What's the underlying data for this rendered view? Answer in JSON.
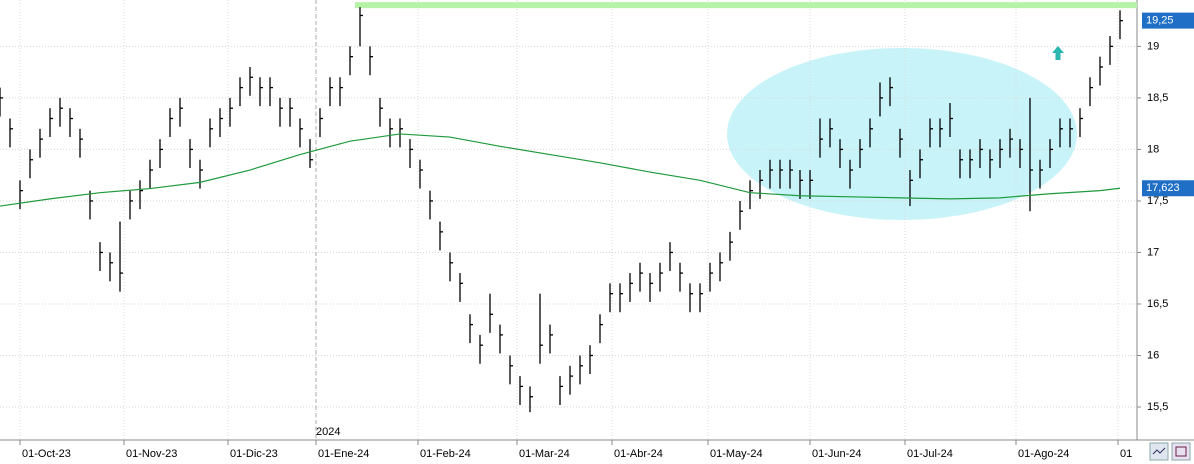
{
  "chart_data": {
    "type": "ohlc",
    "xlim": [
      0,
      113.7
    ],
    "ylim": [
      15.18,
      19.45
    ],
    "xticks": [
      {
        "value": 2,
        "label": "01-Oct-23"
      },
      {
        "value": 12.4,
        "label": "01-Nov-23"
      },
      {
        "value": 22.8,
        "label": "01-Dic-23"
      },
      {
        "value": 31.6,
        "label": "01-Ene-24"
      },
      {
        "value": 41.8,
        "label": "01-Feb-24"
      },
      {
        "value": 51.7,
        "label": "01-Mar-24"
      },
      {
        "value": 61.2,
        "label": "01-Abr-24"
      },
      {
        "value": 70.8,
        "label": "01-May-24"
      },
      {
        "value": 81,
        "label": "01-Jun-24"
      },
      {
        "value": 90.5,
        "label": "01-Jul-24"
      },
      {
        "value": 101.6,
        "label": "01-Ago-24"
      },
      {
        "value": 111.8,
        "label": "01"
      }
    ],
    "yticks": [
      {
        "value": 15.5,
        "label": "15,5"
      },
      16,
      {
        "value": 16.5,
        "label": "16,5"
      },
      17,
      {
        "value": 17.5,
        "label": "17,5"
      },
      18,
      {
        "value": 18.5,
        "label": "18,5"
      },
      19
    ],
    "grid": true,
    "year_marker": {
      "label": "2024",
      "x": 31.6
    },
    "ohlc": {
      "color": "#000000",
      "x": [
        0,
        1,
        2,
        3,
        4,
        5,
        6,
        7,
        8,
        9,
        10,
        11,
        12,
        13,
        14,
        15,
        16,
        17,
        18,
        19,
        20,
        21,
        22,
        23,
        24,
        25,
        26,
        27,
        28,
        29,
        30,
        31,
        32,
        33,
        34,
        35,
        36,
        37,
        38,
        39,
        40,
        41,
        42,
        43,
        44,
        45,
        46,
        47,
        48,
        49,
        50,
        51,
        52,
        53,
        54,
        55,
        56,
        57,
        58,
        59,
        60,
        61,
        62,
        63,
        64,
        65,
        66,
        67,
        68,
        69,
        70,
        71,
        72,
        73,
        74,
        75,
        76,
        77,
        78,
        79,
        80,
        81,
        82,
        83,
        84,
        85,
        86,
        87,
        88,
        89,
        90,
        91,
        92,
        93,
        94,
        95,
        96,
        97,
        98,
        99,
        100,
        101,
        102,
        103,
        104,
        105,
        106,
        107,
        108,
        109,
        110,
        111,
        112
      ],
      "high": [
        18.6,
        18.3,
        17.7,
        18.0,
        18.2,
        18.4,
        18.5,
        18.4,
        18.2,
        17.6,
        17.1,
        17.0,
        17.3,
        17.6,
        17.7,
        17.9,
        18.1,
        18.4,
        18.5,
        18.1,
        17.9,
        18.3,
        18.4,
        18.5,
        18.7,
        18.8,
        18.7,
        18.7,
        18.5,
        18.5,
        18.3,
        18.1,
        18.4,
        18.7,
        18.7,
        19.0,
        19.38,
        19.0,
        18.5,
        18.3,
        18.3,
        18.1,
        17.9,
        17.6,
        17.3,
        17.0,
        16.8,
        16.4,
        16.2,
        16.6,
        16.3,
        16.0,
        15.8,
        15.7,
        16.6,
        16.3,
        15.8,
        15.9,
        16.0,
        16.1,
        16.4,
        16.7,
        16.7,
        16.8,
        16.9,
        16.8,
        16.9,
        17.1,
        16.9,
        16.7,
        16.7,
        16.9,
        17.0,
        17.2,
        17.5,
        17.7,
        17.8,
        17.9,
        17.9,
        17.9,
        17.8,
        17.8,
        18.3,
        18.3,
        18.1,
        17.9,
        18.1,
        18.3,
        18.65,
        18.7,
        18.2,
        17.8,
        18.0,
        18.3,
        18.3,
        18.45,
        18.0,
        18.0,
        18.1,
        18.0,
        18.1,
        18.2,
        18.1,
        18.5,
        17.9,
        18.1,
        18.3,
        18.3,
        18.4,
        18.7,
        18.9,
        19.1,
        19.35
      ],
      "low": [
        18.32,
        18.02,
        17.42,
        17.72,
        17.92,
        18.12,
        18.22,
        18.12,
        17.92,
        17.32,
        16.82,
        16.72,
        16.62,
        17.32,
        17.42,
        17.62,
        17.82,
        18.12,
        18.22,
        17.82,
        17.62,
        18.02,
        18.12,
        18.22,
        18.42,
        18.52,
        18.42,
        18.42,
        18.22,
        18.22,
        18.02,
        17.82,
        18.12,
        18.42,
        18.42,
        18.72,
        19.0,
        18.72,
        18.22,
        18.02,
        18.02,
        17.82,
        17.62,
        17.32,
        17.02,
        16.72,
        16.52,
        16.12,
        15.92,
        16.22,
        16.02,
        15.72,
        15.52,
        15.45,
        15.92,
        16.02,
        15.52,
        15.62,
        15.72,
        15.82,
        16.12,
        16.42,
        16.42,
        16.52,
        16.62,
        16.52,
        16.62,
        16.82,
        16.62,
        16.42,
        16.42,
        16.62,
        16.72,
        16.92,
        17.22,
        17.42,
        17.52,
        17.62,
        17.62,
        17.62,
        17.52,
        17.52,
        17.92,
        18.02,
        17.82,
        17.62,
        17.82,
        18.02,
        18.32,
        18.42,
        17.92,
        17.45,
        17.72,
        18.02,
        18.02,
        18.12,
        17.72,
        17.72,
        17.82,
        17.72,
        17.82,
        17.92,
        17.82,
        17.4,
        17.62,
        17.82,
        18.02,
        18.02,
        18.12,
        18.42,
        18.62,
        18.82,
        19.07
      ],
      "close": [
        18.5,
        18.2,
        17.6,
        17.9,
        18.1,
        18.3,
        18.4,
        18.3,
        18.1,
        17.5,
        17.0,
        16.9,
        16.8,
        17.5,
        17.6,
        17.8,
        18.0,
        18.3,
        18.4,
        18.0,
        17.8,
        18.2,
        18.3,
        18.4,
        18.6,
        18.7,
        18.6,
        18.6,
        18.4,
        18.4,
        18.2,
        17.9,
        18.3,
        18.6,
        18.6,
        18.9,
        19.3,
        18.9,
        18.4,
        18.2,
        18.2,
        18.0,
        17.8,
        17.5,
        17.2,
        16.9,
        16.7,
        16.3,
        16.1,
        16.4,
        16.2,
        15.9,
        15.7,
        15.6,
        16.1,
        16.2,
        15.7,
        15.8,
        15.9,
        16.0,
        16.3,
        16.6,
        16.6,
        16.7,
        16.8,
        16.7,
        16.8,
        17.0,
        16.8,
        16.6,
        16.6,
        16.8,
        16.9,
        17.1,
        17.4,
        17.6,
        17.7,
        17.8,
        17.8,
        17.8,
        17.7,
        17.7,
        18.1,
        18.2,
        18.0,
        17.8,
        18.0,
        18.2,
        18.5,
        18.6,
        18.1,
        17.7,
        17.9,
        18.2,
        18.2,
        18.3,
        17.9,
        17.9,
        18.0,
        17.9,
        18.0,
        18.1,
        18.0,
        17.8,
        17.8,
        18.0,
        18.2,
        18.2,
        18.3,
        18.6,
        18.8,
        19.0,
        19.25
      ]
    },
    "ma": {
      "color": "#1e9a3c",
      "x": [
        0,
        5,
        10,
        15,
        20,
        25,
        30,
        35,
        40,
        45,
        50,
        55,
        60,
        65,
        70,
        75,
        80,
        85,
        90,
        95,
        100,
        105,
        110,
        112
      ],
      "values": [
        17.45,
        17.52,
        17.58,
        17.62,
        17.68,
        17.8,
        17.95,
        18.08,
        18.15,
        18.12,
        18.03,
        17.95,
        17.87,
        17.78,
        17.7,
        17.58,
        17.55,
        17.54,
        17.53,
        17.52,
        17.53,
        17.57,
        17.6,
        17.623
      ]
    },
    "resistance": {
      "color": "#b6f2a8",
      "value": 19.4,
      "x": [
        35.5,
        113.7
      ]
    },
    "last_labels": [
      {
        "value": 19.25,
        "label": "19,25"
      },
      {
        "value": 17.623,
        "label": "17,623"
      }
    ]
  }
}
